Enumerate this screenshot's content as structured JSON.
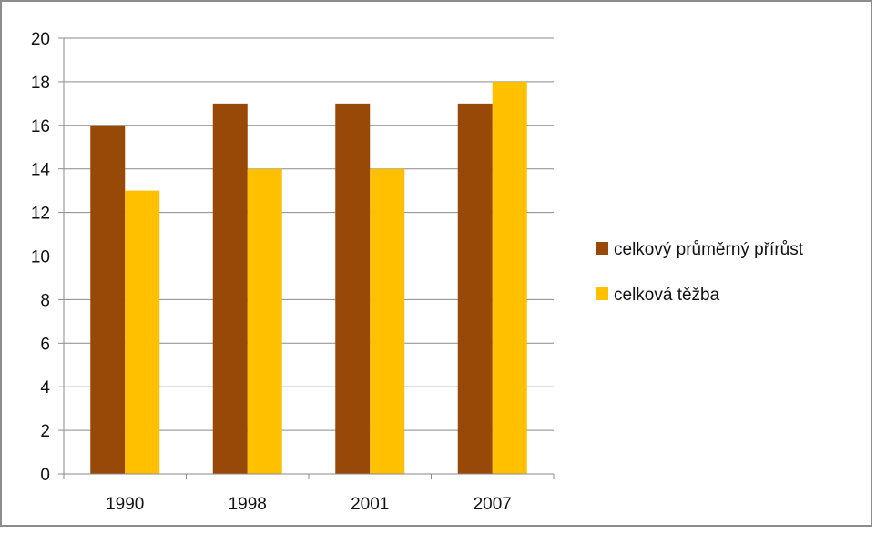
{
  "chart_data": {
    "type": "bar",
    "categories": [
      "1990",
      "1998",
      "2001",
      "2007"
    ],
    "series": [
      {
        "name": "celkový průměrný přírůst",
        "values": [
          16,
          17,
          17,
          17
        ],
        "color": "#984807"
      },
      {
        "name": "celková těžba",
        "values": [
          13,
          14,
          14,
          18
        ],
        "color": "#FFC000"
      }
    ],
    "title": "",
    "xlabel": "",
    "ylabel": "",
    "ylim": [
      0,
      20
    ],
    "yticks": [
      0,
      2,
      4,
      6,
      8,
      10,
      12,
      14,
      16,
      18,
      20
    ],
    "grid": true,
    "legend_position": "right"
  }
}
